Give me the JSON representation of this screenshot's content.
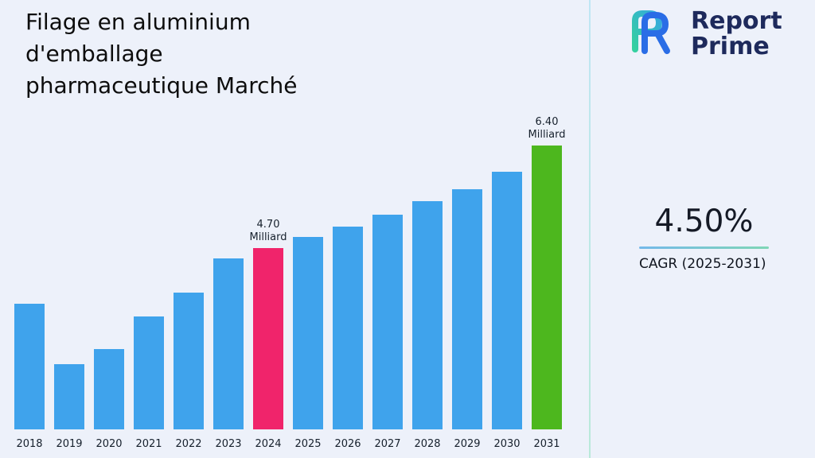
{
  "header": {
    "title": "Filage en aluminium\nd'emballage\npharmaceutique Marché"
  },
  "brand": {
    "line1": "Report",
    "line2": "Prime",
    "text_color": "#1E2A5C",
    "logo_colors": {
      "teal": "#35D0A0",
      "cyan": "#35A8E0",
      "blue": "#2A6DE6"
    }
  },
  "stat": {
    "value": "4.50%",
    "caption": "CAGR (2025-2031)",
    "underline_colors": [
      "#74B9EA",
      "#7FD6B6"
    ]
  },
  "chart_data": {
    "type": "bar",
    "title": "",
    "xlabel": "",
    "ylabel": "",
    "unit": "Milliard",
    "categories": [
      "2018",
      "2019",
      "2020",
      "2021",
      "2022",
      "2023",
      "2024",
      "2025",
      "2026",
      "2027",
      "2028",
      "2029",
      "2030",
      "2031"
    ],
    "values": [
      3.78,
      2.78,
      3.03,
      3.57,
      3.96,
      4.53,
      4.7,
      4.88,
      5.06,
      5.25,
      5.48,
      5.68,
      5.97,
      6.4
    ],
    "annotations": [
      {
        "category": "2024",
        "text": "4.70\nMilliard"
      },
      {
        "category": "2031",
        "text": "6.40\nMilliard"
      }
    ],
    "highlight": {
      "2024": "pink",
      "2031": "green"
    },
    "colors": {
      "default": "#3FA3EC",
      "pink": "#F0246B",
      "green": "#4DB71E"
    },
    "ylim": [
      0,
      7
    ],
    "grid": false,
    "legend": false
  }
}
